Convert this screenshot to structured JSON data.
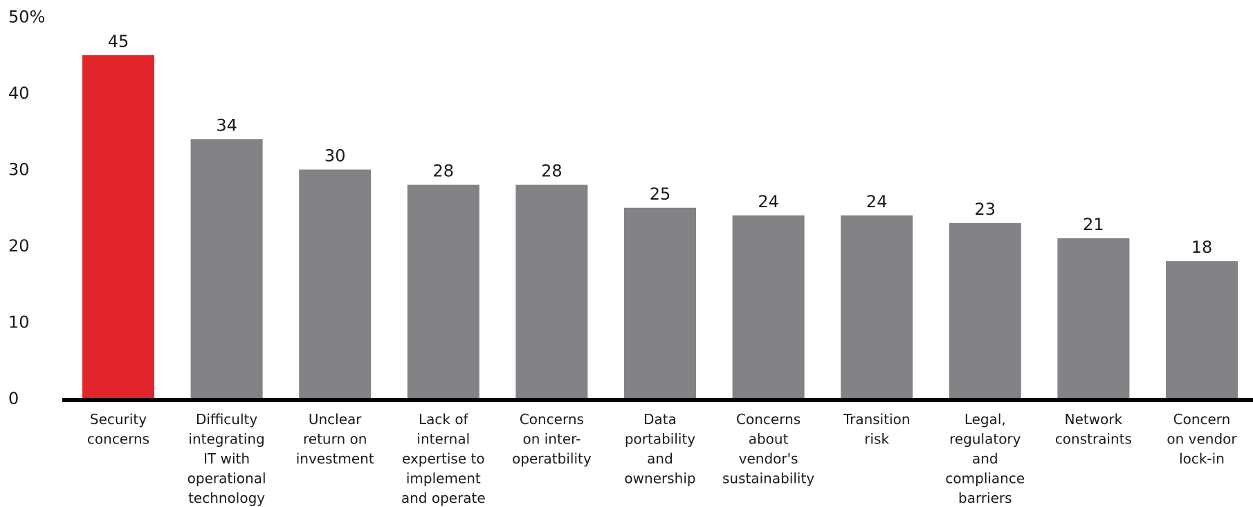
{
  "chart_data": {
    "type": "bar",
    "title": "",
    "xlabel": "",
    "ylabel": "",
    "ylim": [
      0,
      50
    ],
    "y_ticks": [
      {
        "value": 0,
        "label": "0"
      },
      {
        "value": 10,
        "label": "10"
      },
      {
        "value": 20,
        "label": "20"
      },
      {
        "value": 30,
        "label": "30"
      },
      {
        "value": 40,
        "label": "40"
      },
      {
        "value": 50,
        "label": "50%"
      }
    ],
    "grid": false,
    "legend": "none",
    "categories": [
      [
        "Security",
        "concerns"
      ],
      [
        "Difficulty",
        "integrating",
        "IT with",
        "operational",
        "technology"
      ],
      [
        "Unclear",
        "return on",
        "investment"
      ],
      [
        "Lack of",
        "internal",
        "expertise to",
        "implement",
        "and operate"
      ],
      [
        "Concerns",
        "on inter-",
        "operatbility"
      ],
      [
        "Data",
        "portability",
        "and",
        "ownership"
      ],
      [
        "Concerns",
        "about",
        "vendor's",
        "sustainability"
      ],
      [
        "Transition",
        "risk"
      ],
      [
        "Legal,",
        "regulatory",
        "and",
        "compliance",
        "barriers"
      ],
      [
        "Network",
        "constraints"
      ],
      [
        "Concern",
        "on vendor",
        "lock-in"
      ]
    ],
    "values": [
      45,
      34,
      30,
      28,
      28,
      25,
      24,
      24,
      23,
      21,
      18
    ],
    "value_labels": [
      "45",
      "34",
      "30",
      "28",
      "28",
      "25",
      "24",
      "24",
      "23",
      "21",
      "18"
    ],
    "colors": {
      "highlight": "#e1252a",
      "default": "#828387",
      "axis": "#000000"
    },
    "highlight_index": 0
  }
}
